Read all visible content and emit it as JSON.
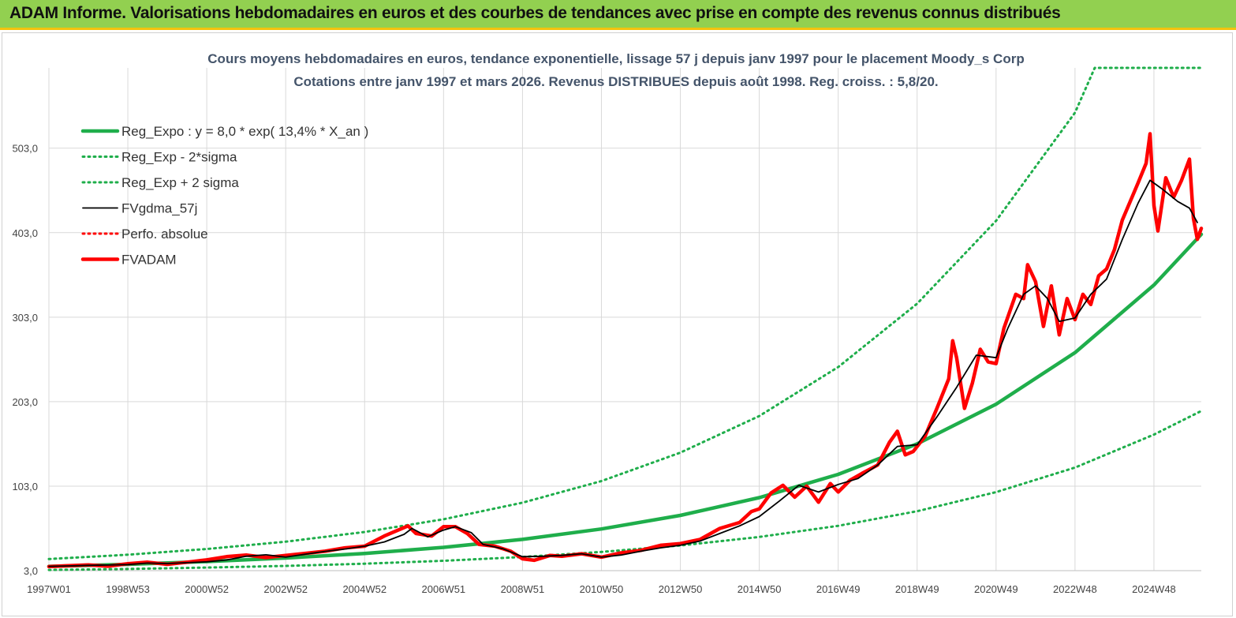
{
  "banner": {
    "title": "ADAM Informe. Valorisations hebdomadaires en euros et des courbes de tendances avec prise en compte des revenus connus distribués"
  },
  "colors": {
    "banner_bg": "#92d050",
    "accent": "#f4c20d",
    "regression": "#1fae4b",
    "fvgdma": "#000000",
    "fvadam": "#ff0000"
  },
  "chart_data": {
    "type": "line",
    "title_lines": [
      "Cours moyens hebdomadaires en euros, tendance exponentielle, lissage 57 j depuis janv 1997 pour le placement Moody_s Corp",
      "Cotations entre janv 1997 et mars 2026. Revenus DISTRIBUES depuis août 1998. Reg. croiss. : 5,8/20."
    ],
    "x_tick_labels": [
      "1997W01",
      "1998W53",
      "2000W52",
      "2002W52",
      "2004W52",
      "2006W51",
      "2008W51",
      "2010W50",
      "2012W50",
      "2014W50",
      "2016W49",
      "2018W49",
      "2020W49",
      "2022W48",
      "2024W48"
    ],
    "x_tick_years": [
      1997.0,
      1999.0,
      2001.0,
      2003.0,
      2005.0,
      2007.0,
      2009.0,
      2011.0,
      2013.0,
      2015.0,
      2017.0,
      2019.0,
      2021.0,
      2023.0,
      2025.0
    ],
    "x_range": [
      1997.0,
      2026.2
    ],
    "y_tick_labels": [
      "3,0",
      "103,0",
      "203,0",
      "303,0",
      "403,0",
      "503,0"
    ],
    "y_ticks": [
      3,
      103,
      203,
      303,
      403,
      503
    ],
    "ylim": [
      3,
      598
    ],
    "grid": true,
    "legend_position": "top-left",
    "series": [
      {
        "name": "Reg_Expo : y = 8,0 * exp( 13,4% *  X_an )",
        "style": "solid-thick",
        "color": "#1fae4b",
        "points": [
          [
            1997,
            8
          ],
          [
            1999,
            10.5
          ],
          [
            2001,
            13.7
          ],
          [
            2003,
            17.9
          ],
          [
            2005,
            23.4
          ],
          [
            2007,
            30.6
          ],
          [
            2009,
            40
          ],
          [
            2011,
            52.3
          ],
          [
            2013,
            68.4
          ],
          [
            2015,
            89.4
          ],
          [
            2017,
            117
          ],
          [
            2019,
            153
          ],
          [
            2021,
            200
          ],
          [
            2023,
            261
          ],
          [
            2025,
            341
          ],
          [
            2026.2,
            401
          ]
        ]
      },
      {
        "name": "Reg_Exp - 2*sigma",
        "style": "dotted",
        "color": "#1fae4b",
        "points": [
          [
            1997,
            3.8
          ],
          [
            1999,
            5
          ],
          [
            2001,
            6.6
          ],
          [
            2003,
            8.6
          ],
          [
            2005,
            11.2
          ],
          [
            2007,
            14.7
          ],
          [
            2009,
            19.2
          ],
          [
            2011,
            25.1
          ],
          [
            2013,
            32.8
          ],
          [
            2015,
            42.9
          ],
          [
            2017,
            56.1
          ],
          [
            2019,
            73.3
          ],
          [
            2021,
            95.9
          ],
          [
            2023,
            125
          ],
          [
            2025,
            164
          ],
          [
            2026.2,
            192
          ]
        ]
      },
      {
        "name": "Reg_Exp + 2 sigma",
        "style": "dotted",
        "color": "#1fae4b",
        "points": [
          [
            1997,
            16.7
          ],
          [
            1999,
            21.9
          ],
          [
            2001,
            28.6
          ],
          [
            2003,
            37.3
          ],
          [
            2005,
            48.8
          ],
          [
            2007,
            63.8
          ],
          [
            2009,
            83.4
          ],
          [
            2011,
            109
          ],
          [
            2013,
            142.6
          ],
          [
            2015,
            186
          ],
          [
            2017,
            244
          ],
          [
            2019,
            319
          ],
          [
            2021,
            417
          ],
          [
            2023,
            545
          ],
          [
            2023.5,
            598
          ],
          [
            2026.2,
            598
          ]
        ]
      },
      {
        "name": "FVgdma_57j",
        "style": "solid",
        "color": "#000000",
        "points": [
          [
            1997,
            8
          ],
          [
            1997.5,
            8.6
          ],
          [
            1998,
            9.3
          ],
          [
            1998.5,
            9.6
          ],
          [
            1999,
            10.2
          ],
          [
            1999.5,
            12
          ],
          [
            2000,
            11.4
          ],
          [
            2000.5,
            12.4
          ],
          [
            2001,
            13.5
          ],
          [
            2001.5,
            15.6
          ],
          [
            2002,
            20
          ],
          [
            2002.5,
            21.8
          ],
          [
            2003,
            19
          ],
          [
            2003.5,
            22.5
          ],
          [
            2004,
            25.8
          ],
          [
            2004.5,
            28.6
          ],
          [
            2005,
            32
          ],
          [
            2005.5,
            37
          ],
          [
            2006,
            46
          ],
          [
            2006.2,
            53
          ],
          [
            2006.6,
            43
          ],
          [
            2007,
            51
          ],
          [
            2007.3,
            55
          ],
          [
            2007.7,
            48
          ],
          [
            2008,
            34
          ],
          [
            2008.5,
            29
          ],
          [
            2009,
            19.5
          ],
          [
            2009.5,
            20
          ],
          [
            2010,
            21
          ],
          [
            2010.5,
            23
          ],
          [
            2011,
            19
          ],
          [
            2011.5,
            21.5
          ],
          [
            2012,
            26
          ],
          [
            2012.5,
            30
          ],
          [
            2013,
            33
          ],
          [
            2013.5,
            38
          ],
          [
            2014,
            47
          ],
          [
            2014.5,
            56
          ],
          [
            2015,
            67
          ],
          [
            2015.5,
            85
          ],
          [
            2016,
            104
          ],
          [
            2016.5,
            96
          ],
          [
            2017,
            105
          ],
          [
            2017.5,
            112
          ],
          [
            2018,
            128
          ],
          [
            2018.5,
            150
          ],
          [
            2019,
            152
          ],
          [
            2019.5,
            185
          ],
          [
            2020,
            220
          ],
          [
            2020.5,
            258
          ],
          [
            2021,
            255
          ],
          [
            2021.3,
            290
          ],
          [
            2021.7,
            330
          ],
          [
            2022,
            340
          ],
          [
            2022.3,
            325
          ],
          [
            2022.6,
            298
          ],
          [
            2023,
            302
          ],
          [
            2023.4,
            330
          ],
          [
            2023.8,
            348
          ],
          [
            2024.2,
            395
          ],
          [
            2024.6,
            438
          ],
          [
            2024.9,
            465
          ],
          [
            2025.2,
            455
          ],
          [
            2025.6,
            440
          ],
          [
            2025.9,
            432
          ],
          [
            2026.1,
            415
          ]
        ]
      },
      {
        "name": "Perfo. absolue",
        "style": "dotted",
        "color": "#ff0000",
        "points": []
      },
      {
        "name": "FVADAM",
        "style": "solid-thick",
        "color": "#ff0000",
        "points": [
          [
            1997,
            7.8
          ],
          [
            1997.5,
            8.8
          ],
          [
            1998,
            9.8
          ],
          [
            1998.5,
            8.2
          ],
          [
            1999,
            11.2
          ],
          [
            1999.5,
            13
          ],
          [
            2000,
            10.5
          ],
          [
            2000.5,
            13
          ],
          [
            2001,
            15.8
          ],
          [
            2001.5,
            19.5
          ],
          [
            2002,
            21.5
          ],
          [
            2002.5,
            18.5
          ],
          [
            2003,
            21
          ],
          [
            2003.5,
            23.5
          ],
          [
            2004,
            26
          ],
          [
            2004.5,
            30
          ],
          [
            2005,
            32
          ],
          [
            2005.5,
            44
          ],
          [
            2006,
            54
          ],
          [
            2006.1,
            56
          ],
          [
            2006.3,
            47
          ],
          [
            2006.7,
            44
          ],
          [
            2007,
            55
          ],
          [
            2007.3,
            55
          ],
          [
            2007.6,
            47
          ],
          [
            2007.9,
            34
          ],
          [
            2008.3,
            32
          ],
          [
            2008.7,
            26
          ],
          [
            2009,
            17
          ],
          [
            2009.3,
            15.2
          ],
          [
            2009.7,
            21
          ],
          [
            2010,
            20
          ],
          [
            2010.5,
            23
          ],
          [
            2011,
            19
          ],
          [
            2011.5,
            24
          ],
          [
            2012,
            27
          ],
          [
            2012.5,
            33
          ],
          [
            2013,
            35
          ],
          [
            2013.5,
            40
          ],
          [
            2014,
            53
          ],
          [
            2014.5,
            60
          ],
          [
            2014.8,
            73
          ],
          [
            2015,
            76
          ],
          [
            2015.3,
            95
          ],
          [
            2015.6,
            104
          ],
          [
            2015.9,
            90
          ],
          [
            2016.2,
            103
          ],
          [
            2016.5,
            84
          ],
          [
            2016.8,
            106
          ],
          [
            2017,
            96
          ],
          [
            2017.3,
            110
          ],
          [
            2017.6,
            118
          ],
          [
            2018,
            128
          ],
          [
            2018.3,
            155
          ],
          [
            2018.5,
            168
          ],
          [
            2018.7,
            140
          ],
          [
            2018.9,
            144
          ],
          [
            2019.2,
            162
          ],
          [
            2019.5,
            195
          ],
          [
            2019.8,
            230
          ],
          [
            2019.9,
            275
          ],
          [
            2020,
            255
          ],
          [
            2020.2,
            195
          ],
          [
            2020.4,
            225
          ],
          [
            2020.6,
            265
          ],
          [
            2020.8,
            250
          ],
          [
            2021,
            248
          ],
          [
            2021.2,
            290
          ],
          [
            2021.5,
            330
          ],
          [
            2021.7,
            325
          ],
          [
            2021.8,
            365
          ],
          [
            2022,
            345
          ],
          [
            2022.2,
            292
          ],
          [
            2022.4,
            340
          ],
          [
            2022.6,
            282
          ],
          [
            2022.8,
            325
          ],
          [
            2023,
            300
          ],
          [
            2023.2,
            330
          ],
          [
            2023.4,
            318
          ],
          [
            2023.6,
            352
          ],
          [
            2023.8,
            360
          ],
          [
            2024,
            383
          ],
          [
            2024.2,
            418
          ],
          [
            2024.4,
            440
          ],
          [
            2024.6,
            462
          ],
          [
            2024.8,
            485
          ],
          [
            2024.9,
            520
          ],
          [
            2025,
            435
          ],
          [
            2025.1,
            405
          ],
          [
            2025.3,
            468
          ],
          [
            2025.5,
            445
          ],
          [
            2025.7,
            465
          ],
          [
            2025.9,
            490
          ],
          [
            2026,
            420
          ],
          [
            2026.1,
            395
          ],
          [
            2026.2,
            408
          ]
        ]
      }
    ]
  }
}
